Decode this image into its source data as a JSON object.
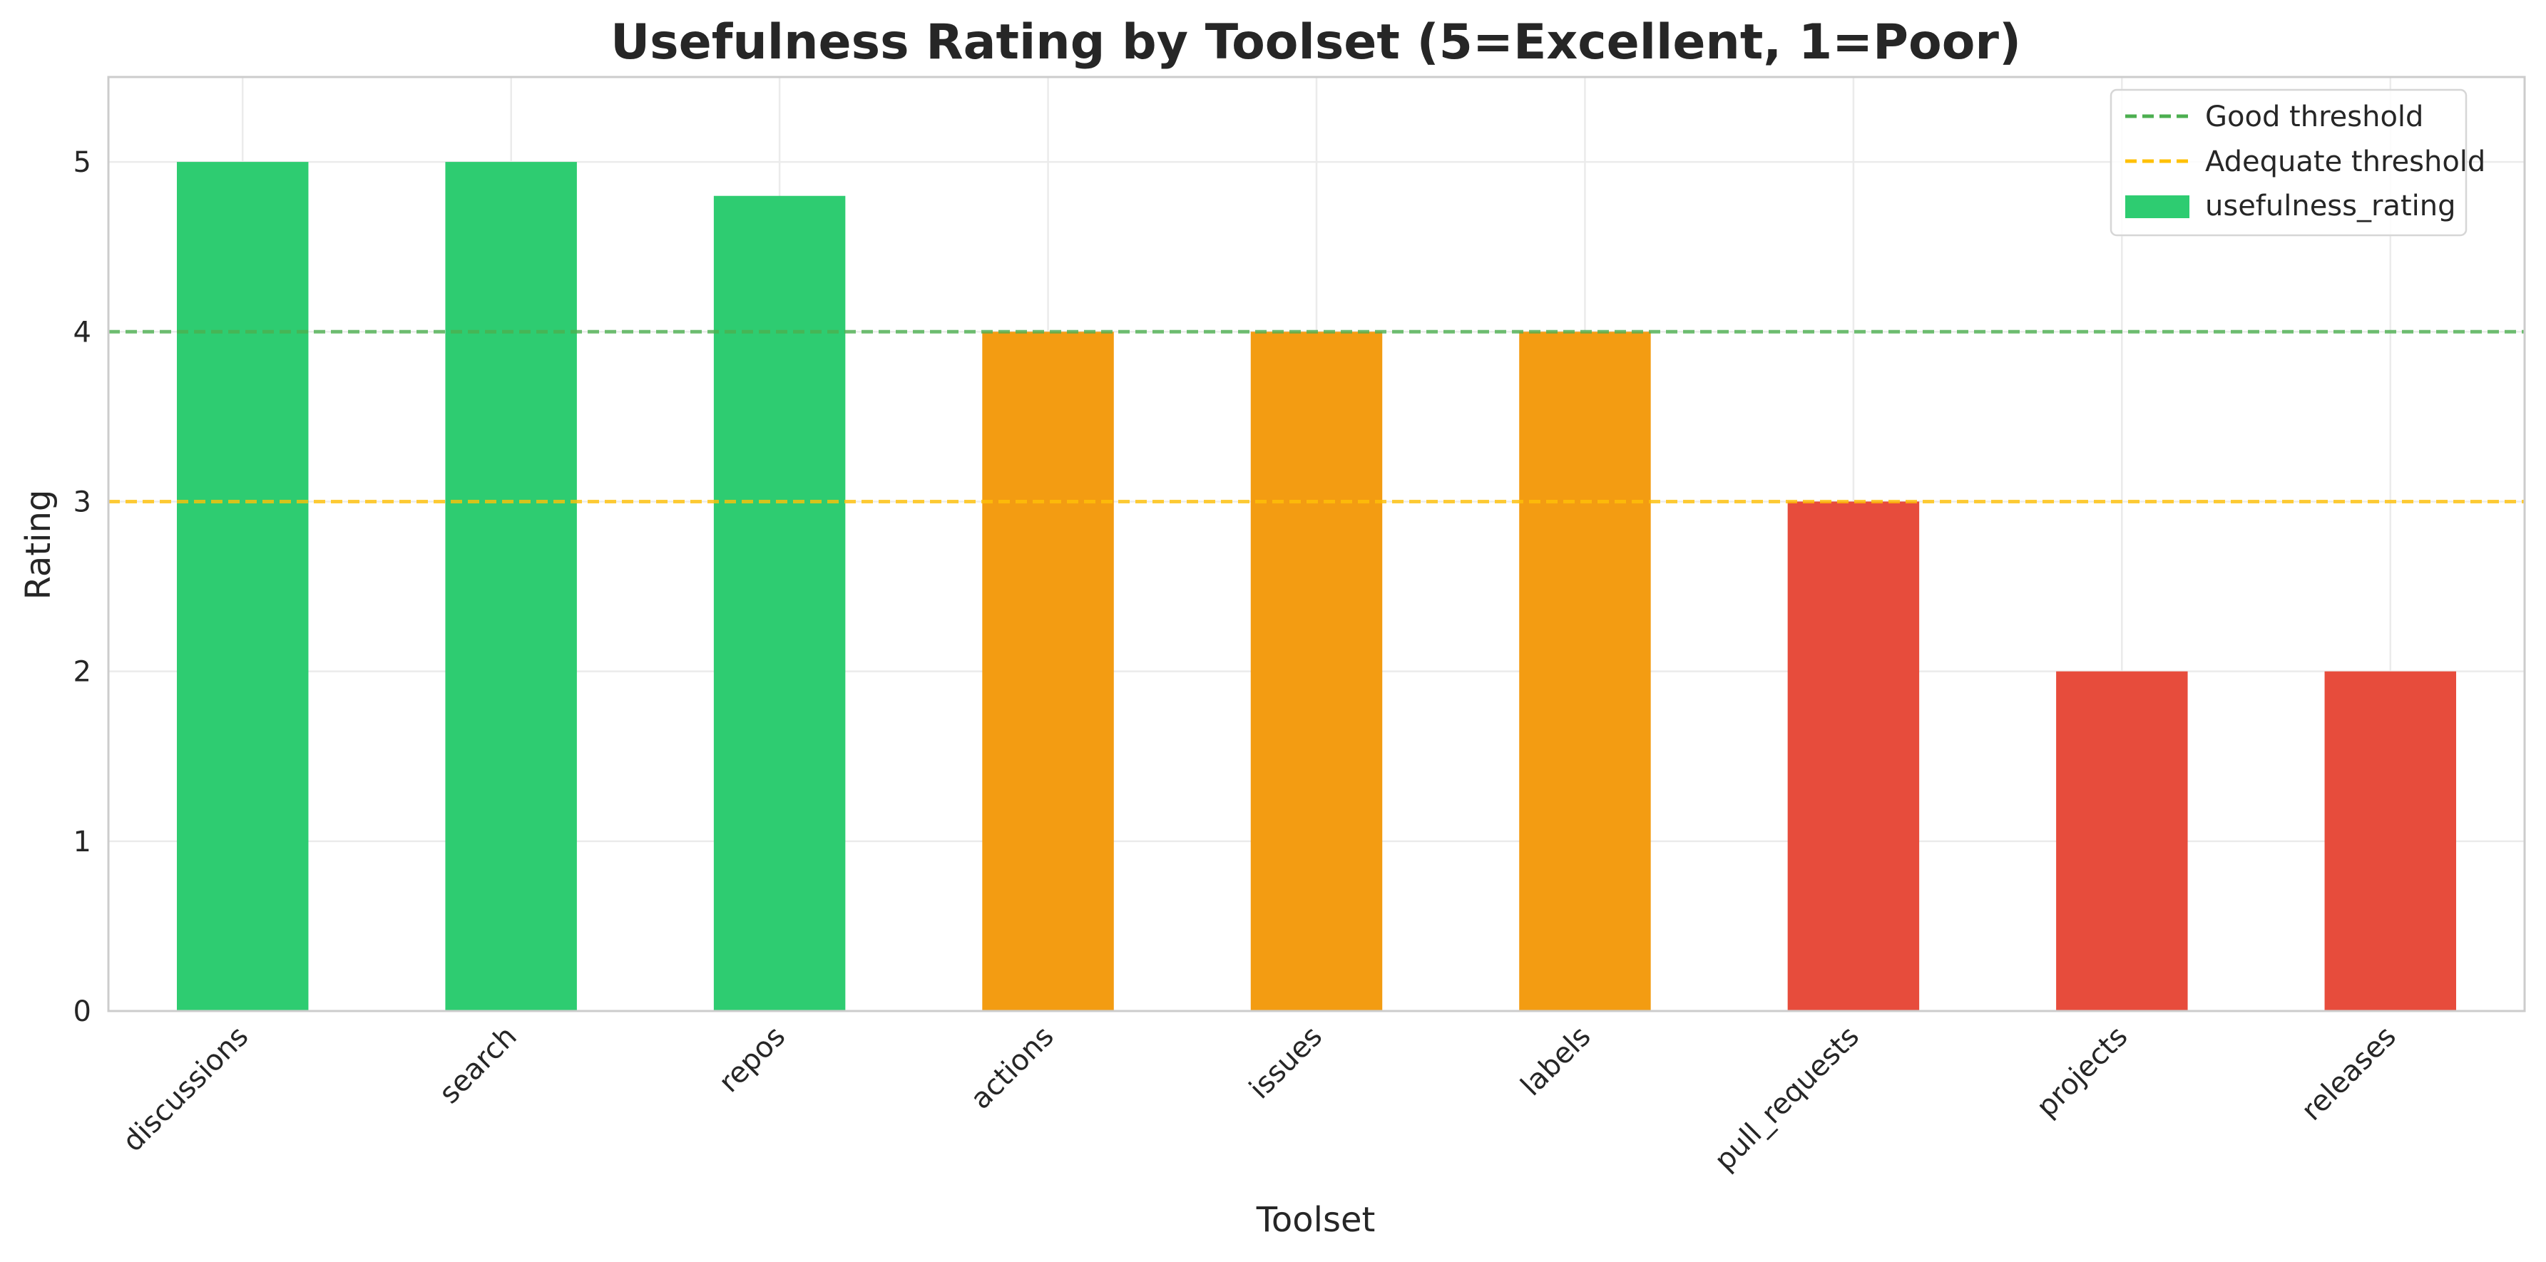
{
  "chart_data": {
    "type": "bar",
    "title": "Usefulness Rating by Toolset (5=Excellent, 1=Poor)",
    "xlabel": "Toolset",
    "ylabel": "Rating",
    "ylim": [
      0,
      5.5
    ],
    "yticks": [
      0,
      1,
      2,
      3,
      4,
      5
    ],
    "grid": true,
    "legend_position": "top-right",
    "categories": [
      "discussions",
      "search",
      "repos",
      "actions",
      "issues",
      "labels",
      "pull_requests",
      "projects",
      "releases"
    ],
    "series": [
      {
        "name": "usefulness_rating",
        "values": [
          5.0,
          5.0,
          4.8,
          4.0,
          4.0,
          4.0,
          3.0,
          2.0,
          2.0
        ],
        "colors": [
          "#2ecc71",
          "#2ecc71",
          "#2ecc71",
          "#f39c12",
          "#f39c12",
          "#f39c12",
          "#e74c3c",
          "#e74c3c",
          "#e74c3c"
        ],
        "legend_color": "#2ecc71"
      }
    ],
    "reference_lines": [
      {
        "name": "Good threshold",
        "value": 4,
        "color": "#4caf50",
        "style": "dashed"
      },
      {
        "name": "Adequate threshold",
        "value": 3,
        "color": "#ffc107",
        "style": "dashed"
      }
    ]
  }
}
